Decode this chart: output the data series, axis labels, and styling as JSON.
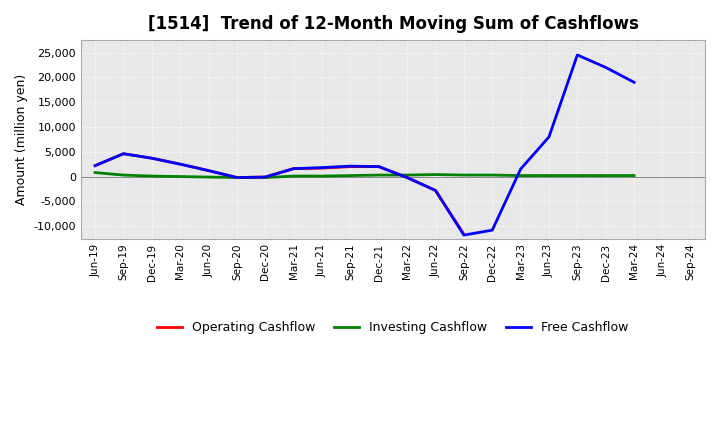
{
  "title": "[1514]  Trend of 12-Month Moving Sum of Cashflows",
  "ylabel": "Amount (million yen)",
  "ylim": [
    -12500,
    27500
  ],
  "yticks": [
    -10000,
    -5000,
    0,
    5000,
    10000,
    15000,
    20000,
    25000
  ],
  "x_labels": [
    "Jun-19",
    "Sep-19",
    "Dec-19",
    "Mar-20",
    "Jun-20",
    "Sep-20",
    "Dec-20",
    "Mar-21",
    "Jun-21",
    "Sep-21",
    "Dec-21",
    "Mar-22",
    "Jun-22",
    "Sep-22",
    "Dec-22",
    "Mar-23",
    "Jun-23",
    "Sep-23",
    "Dec-23",
    "Mar-24",
    "Jun-24",
    "Sep-24"
  ],
  "operating": [
    2200,
    4600,
    3700,
    2500,
    1200,
    -200,
    -100,
    1600,
    1700,
    2000,
    2000,
    -200,
    -2800,
    -11600,
    null,
    null,
    null,
    null,
    null,
    null,
    null,
    null
  ],
  "investing": [
    800,
    300,
    100,
    0,
    -100,
    -200,
    -200,
    100,
    100,
    200,
    300,
    300,
    400,
    300,
    300,
    200,
    200,
    200,
    200,
    200,
    null,
    null
  ],
  "free": [
    2200,
    4600,
    3700,
    2500,
    1200,
    -200,
    -100,
    1600,
    1800,
    2100,
    2000,
    -200,
    -2800,
    -11800,
    -10800,
    1500,
    8000,
    24500,
    22000,
    19000,
    null,
    null
  ],
  "op_color": "#ff0000",
  "inv_color": "#008000",
  "free_color": "#0000ff",
  "bg_color": "#ffffff",
  "plot_bg_color": "#e8e8e8",
  "grid_color": "#ffffff",
  "line_width": 2.0
}
